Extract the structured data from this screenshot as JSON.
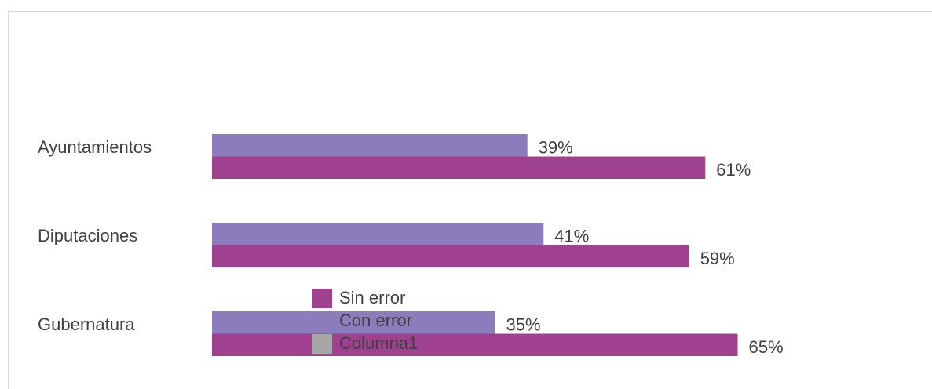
{
  "chart_data": {
    "type": "bar",
    "orientation": "horizontal",
    "categories": [
      "Ayuntamientos",
      "Diputaciones",
      "Gubernatura"
    ],
    "series": [
      {
        "name": "Sin error",
        "color": "#a0418f",
        "values": [
          61,
          59,
          65
        ],
        "value_labels": [
          "61%",
          "59%",
          "65%"
        ]
      },
      {
        "name": "Con error",
        "color": "#8b7dbb",
        "values": [
          39,
          41,
          35
        ],
        "value_labels": [
          "39%",
          "41%",
          "35%"
        ]
      },
      {
        "name": "Columna1",
        "color": "#a5a5a5",
        "values": [
          null,
          null,
          null
        ]
      }
    ]
  }
}
